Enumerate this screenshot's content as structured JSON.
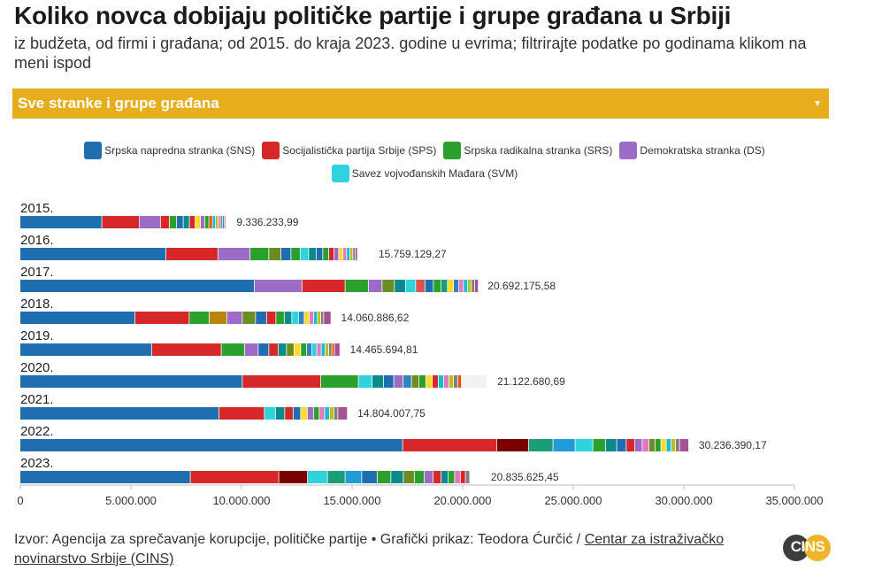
{
  "title": "Koliko novca dobijaju političke partije i grupe građana u Srbiji",
  "subtitle": "iz budžeta, od firmi i građana; od 2015. do kraja 2023. godine u evrima; filtrirajte podatke po godinama klikom na meni ispod",
  "dropdown": {
    "selected": "Sve stranke i grupe građana"
  },
  "footer": {
    "text": "Izvor: Agencija za sprečavanje korupcije, političke partije • Grafički prikaz: Teodora Ćurčić / ",
    "link": "Centar za istraživačko novinarstvo Srbije (CINS)"
  },
  "logo": {
    "text": "CINS"
  },
  "chart_data": {
    "type": "bar",
    "orientation": "horizontal",
    "stacked": true,
    "xlim": [
      0,
      35000000
    ],
    "x_ticks": [
      0,
      5000000,
      10000000,
      15000000,
      20000000,
      25000000,
      30000000,
      35000000
    ],
    "x_tick_labels": [
      "0",
      "5.000.000",
      "10.000.000",
      "15.000.000",
      "20.000.000",
      "25.000.000",
      "30.000.000",
      "35.000.000"
    ],
    "legend": [
      {
        "name": "Srpska napredna stranka (SNS)",
        "color": "#1f6fb0"
      },
      {
        "name": "Socijalistička partija Srbije (SPS)",
        "color": "#d62828"
      },
      {
        "name": "Srpska radikalna stranka (SRS)",
        "color": "#2ca02c"
      },
      {
        "name": "Demokratska stranka (DS)",
        "color": "#9b6bc6"
      },
      {
        "name": "Savez vojvođanskih Mađara (SVM)",
        "color": "#2ed3de"
      }
    ],
    "palette": [
      "#2ca02c",
      "#9b6bc6",
      "#1f6fb0",
      "#d62828",
      "#2ed3de",
      "#d8a019",
      "#0a8a8a",
      "#8b4513",
      "#e377c2",
      "#17becf",
      "#bcbd22",
      "#6a3d9a",
      "#1b9e77",
      "#ffd92f",
      "#7f7f7f",
      "#e6550d",
      "#31a354",
      "#f781bf",
      "#3182bd",
      "#a55194"
    ],
    "years": [
      {
        "label": "2015.",
        "total": 9336233.99,
        "total_label": "9.336.233,99",
        "segments": [
          {
            "v": 3700000,
            "c": "#1f6fb0"
          },
          {
            "v": 1700000,
            "c": "#d62828"
          },
          {
            "v": 950000,
            "c": "#9b6bc6"
          },
          {
            "v": 400000,
            "c": "#d62828"
          },
          {
            "v": 330000,
            "c": "#2ca02c"
          },
          {
            "v": 300000,
            "c": "#1f6fb0"
          },
          {
            "v": 280000,
            "c": "#0a8a8a"
          },
          {
            "v": 260000,
            "c": "#d62828"
          },
          {
            "v": 240000,
            "c": "#ffd92f"
          },
          {
            "v": 200000,
            "c": "#9b6bc6"
          },
          {
            "v": 180000,
            "c": "#2ca02c"
          },
          {
            "v": 160000,
            "c": "#e6550d"
          },
          {
            "v": 140000,
            "c": "#17becf"
          },
          {
            "v": 120000,
            "c": "#bcbd22"
          },
          {
            "v": 100000,
            "c": "#e377c2"
          },
          {
            "v": 90000,
            "c": "#7f7f7f"
          },
          {
            "v": 80000,
            "c": "#3182bd"
          },
          {
            "v": 56233.99,
            "c": "#a55194"
          }
        ]
      },
      {
        "label": "2016.",
        "total": 15759129.27,
        "total_label": "15.759.129,27",
        "segments": [
          {
            "v": 6600000,
            "c": "#1f6fb0"
          },
          {
            "v": 2350000,
            "c": "#d62828"
          },
          {
            "v": 1450000,
            "c": "#9b6bc6"
          },
          {
            "v": 850000,
            "c": "#2ca02c"
          },
          {
            "v": 550000,
            "c": "#6b8e23"
          },
          {
            "v": 450000,
            "c": "#1f6fb0"
          },
          {
            "v": 420000,
            "c": "#2ca02c"
          },
          {
            "v": 380000,
            "c": "#2ed3de"
          },
          {
            "v": 340000,
            "c": "#0a8a8a"
          },
          {
            "v": 300000,
            "c": "#1f6fb0"
          },
          {
            "v": 270000,
            "c": "#2ca02c"
          },
          {
            "v": 240000,
            "c": "#d62828"
          },
          {
            "v": 210000,
            "c": "#9b6bc6"
          },
          {
            "v": 190000,
            "c": "#ffd92f"
          },
          {
            "v": 170000,
            "c": "#e377c2"
          },
          {
            "v": 150000,
            "c": "#17becf"
          },
          {
            "v": 130000,
            "c": "#bcbd22"
          },
          {
            "v": 110000,
            "c": "#7f7f7f"
          },
          {
            "v": 99129.27,
            "c": "#a55194"
          }
        ]
      },
      {
        "label": "2017.",
        "total": 20692175.58,
        "total_label": "20.692.175,58",
        "segments": [
          {
            "v": 10600000,
            "c": "#1f6fb0"
          },
          {
            "v": 2150000,
            "c": "#9b6bc6"
          },
          {
            "v": 1950000,
            "c": "#d62828"
          },
          {
            "v": 1050000,
            "c": "#2ca02c"
          },
          {
            "v": 620000,
            "c": "#9b6bc6"
          },
          {
            "v": 560000,
            "c": "#6b8e23"
          },
          {
            "v": 500000,
            "c": "#0a8a8a"
          },
          {
            "v": 460000,
            "c": "#2ed3de"
          },
          {
            "v": 420000,
            "c": "#d9534f"
          },
          {
            "v": 380000,
            "c": "#1f6fb0"
          },
          {
            "v": 340000,
            "c": "#2ca02c"
          },
          {
            "v": 300000,
            "c": "#1b9e77"
          },
          {
            "v": 270000,
            "c": "#ffd92f"
          },
          {
            "v": 240000,
            "c": "#3182bd"
          },
          {
            "v": 210000,
            "c": "#e377c2"
          },
          {
            "v": 190000,
            "c": "#17becf"
          },
          {
            "v": 170000,
            "c": "#bcbd22"
          },
          {
            "v": 150000,
            "c": "#7f7f7f"
          },
          {
            "v": 162175.58,
            "c": "#a55194"
          }
        ]
      },
      {
        "label": "2018.",
        "total": 14060886.62,
        "total_label": "14.060.886,62",
        "segments": [
          {
            "v": 5200000,
            "c": "#1f6fb0"
          },
          {
            "v": 2450000,
            "c": "#d62828"
          },
          {
            "v": 900000,
            "c": "#2ca02c"
          },
          {
            "v": 800000,
            "c": "#b8860b"
          },
          {
            "v": 700000,
            "c": "#9b6bc6"
          },
          {
            "v": 600000,
            "c": "#6b8e23"
          },
          {
            "v": 500000,
            "c": "#1f6fb0"
          },
          {
            "v": 420000,
            "c": "#d62828"
          },
          {
            "v": 380000,
            "c": "#2ca02c"
          },
          {
            "v": 340000,
            "c": "#0a8a8a"
          },
          {
            "v": 300000,
            "c": "#2ed3de"
          },
          {
            "v": 260000,
            "c": "#3182bd"
          },
          {
            "v": 230000,
            "c": "#ffd92f"
          },
          {
            "v": 200000,
            "c": "#e377c2"
          },
          {
            "v": 170000,
            "c": "#17becf"
          },
          {
            "v": 150000,
            "c": "#bcbd22"
          },
          {
            "v": 130000,
            "c": "#7f7f7f"
          },
          {
            "v": 330886.62,
            "c": "#a55194"
          }
        ]
      },
      {
        "label": "2019.",
        "total": 14465694.81,
        "total_label": "14.465.694,81",
        "segments": [
          {
            "v": 5950000,
            "c": "#1f6fb0"
          },
          {
            "v": 3150000,
            "c": "#d62828"
          },
          {
            "v": 1050000,
            "c": "#2ca02c"
          },
          {
            "v": 620000,
            "c": "#9b6bc6"
          },
          {
            "v": 480000,
            "c": "#1f6fb0"
          },
          {
            "v": 420000,
            "c": "#d62828"
          },
          {
            "v": 380000,
            "c": "#0a8a8a"
          },
          {
            "v": 340000,
            "c": "#6b8e23"
          },
          {
            "v": 300000,
            "c": "#ffd92f"
          },
          {
            "v": 270000,
            "c": "#2ca02c"
          },
          {
            "v": 240000,
            "c": "#3182bd"
          },
          {
            "v": 220000,
            "c": "#2ed3de"
          },
          {
            "v": 200000,
            "c": "#e377c2"
          },
          {
            "v": 180000,
            "c": "#17becf"
          },
          {
            "v": 160000,
            "c": "#bcbd22"
          },
          {
            "v": 140000,
            "c": "#7f7f7f"
          },
          {
            "v": 120000,
            "c": "#e6550d"
          },
          {
            "v": 245694.81,
            "c": "#a55194"
          }
        ]
      },
      {
        "label": "2020.",
        "total": 21122680.69,
        "total_label": "21.122.680,69",
        "segments": [
          {
            "v": 10050000,
            "c": "#1f6fb0"
          },
          {
            "v": 3550000,
            "c": "#d62828"
          },
          {
            "v": 1700000,
            "c": "#2ca02c"
          },
          {
            "v": 620000,
            "c": "#2ed3de"
          },
          {
            "v": 520000,
            "c": "#0a8a8a"
          },
          {
            "v": 460000,
            "c": "#1f6fb0"
          },
          {
            "v": 420000,
            "c": "#9b6bc6"
          },
          {
            "v": 380000,
            "c": "#3182bd"
          },
          {
            "v": 340000,
            "c": "#6b8e23"
          },
          {
            "v": 310000,
            "c": "#2ca02c"
          },
          {
            "v": 290000,
            "c": "#ffd92f"
          },
          {
            "v": 270000,
            "c": "#d62828"
          },
          {
            "v": 250000,
            "c": "#17becf"
          },
          {
            "v": 230000,
            "c": "#e377c2"
          },
          {
            "v": 210000,
            "c": "#bcbd22"
          },
          {
            "v": 190000,
            "c": "#7f7f7f"
          },
          {
            "v": 170000,
            "c": "#e6550d"
          },
          {
            "v": 1162680.69,
            "c": "#f2f2f2"
          }
        ]
      },
      {
        "label": "2021.",
        "total": 14804007.75,
        "total_label": "14.804.007,75",
        "segments": [
          {
            "v": 9000000,
            "c": "#1f6fb0"
          },
          {
            "v": 2050000,
            "c": "#d62828"
          },
          {
            "v": 500000,
            "c": "#2ed3de"
          },
          {
            "v": 420000,
            "c": "#0a8a8a"
          },
          {
            "v": 380000,
            "c": "#d62828"
          },
          {
            "v": 340000,
            "c": "#1f6fb0"
          },
          {
            "v": 300000,
            "c": "#ffd92f"
          },
          {
            "v": 280000,
            "c": "#9b6bc6"
          },
          {
            "v": 260000,
            "c": "#2ca02c"
          },
          {
            "v": 240000,
            "c": "#e377c2"
          },
          {
            "v": 220000,
            "c": "#17becf"
          },
          {
            "v": 200000,
            "c": "#bcbd22"
          },
          {
            "v": 180000,
            "c": "#7f7f7f"
          },
          {
            "v": 434007.75,
            "c": "#a55194"
          }
        ]
      },
      {
        "label": "2022.",
        "total": 30236390.17,
        "total_label": "30.236.390,17",
        "segments": [
          {
            "v": 17300000,
            "c": "#1f6fb0"
          },
          {
            "v": 4250000,
            "c": "#d62828"
          },
          {
            "v": 1450000,
            "c": "#7a0000"
          },
          {
            "v": 1100000,
            "c": "#1b9e77"
          },
          {
            "v": 1000000,
            "c": "#1f9bd6"
          },
          {
            "v": 800000,
            "c": "#2ed3de"
          },
          {
            "v": 580000,
            "c": "#2ca02c"
          },
          {
            "v": 500000,
            "c": "#0a8a8a"
          },
          {
            "v": 430000,
            "c": "#1f6fb0"
          },
          {
            "v": 380000,
            "c": "#d62828"
          },
          {
            "v": 340000,
            "c": "#9b6bc6"
          },
          {
            "v": 310000,
            "c": "#e377c2"
          },
          {
            "v": 280000,
            "c": "#6b8e23"
          },
          {
            "v": 260000,
            "c": "#2ca02c"
          },
          {
            "v": 240000,
            "c": "#ffd92f"
          },
          {
            "v": 220000,
            "c": "#17becf"
          },
          {
            "v": 200000,
            "c": "#bcbd22"
          },
          {
            "v": 180000,
            "c": "#7f7f7f"
          },
          {
            "v": 416390.17,
            "c": "#a55194"
          }
        ]
      },
      {
        "label": "2023.",
        "total": 20835625.45,
        "total_label": "20.835.625,45",
        "segments": [
          {
            "v": 7700000,
            "c": "#1f6fb0"
          },
          {
            "v": 4000000,
            "c": "#d62828"
          },
          {
            "v": 1300000,
            "c": "#7a0000"
          },
          {
            "v": 900000,
            "c": "#2ed3de"
          },
          {
            "v": 800000,
            "c": "#1b9e77"
          },
          {
            "v": 750000,
            "c": "#1f9bd6"
          },
          {
            "v": 700000,
            "c": "#1f6fb0"
          },
          {
            "v": 620000,
            "c": "#2ca02c"
          },
          {
            "v": 560000,
            "c": "#0a8a8a"
          },
          {
            "v": 500000,
            "c": "#6b8e23"
          },
          {
            "v": 450000,
            "c": "#2ca02c"
          },
          {
            "v": 400000,
            "c": "#9b6bc6"
          },
          {
            "v": 360000,
            "c": "#d62828"
          },
          {
            "v": 320000,
            "c": "#0a8a8a"
          },
          {
            "v": 290000,
            "c": "#2ca02c"
          },
          {
            "v": 260000,
            "c": "#e377c2"
          },
          {
            "v": 230000,
            "c": "#d62828"
          },
          {
            "v": 195625.45,
            "c": "#7f7f7f"
          }
        ]
      }
    ]
  }
}
